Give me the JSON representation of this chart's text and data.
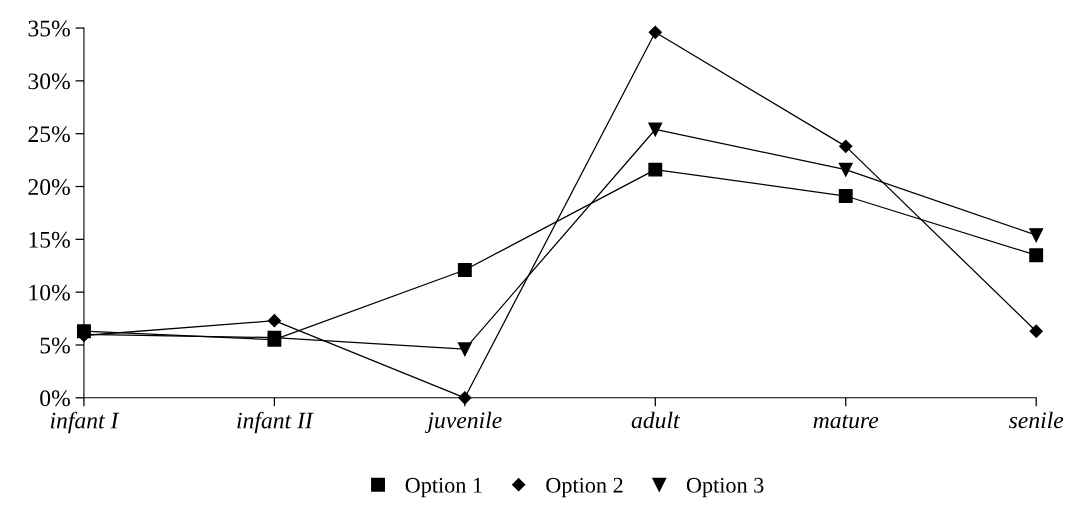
{
  "chart_data": {
    "type": "line",
    "categories": [
      "infant I",
      "infant II",
      "juvenile",
      "adult",
      "mature",
      "senile"
    ],
    "series": [
      {
        "name": "Option 1",
        "color": "#000000",
        "marker": "square",
        "values": [
          6.3,
          5.5,
          12.1,
          21.6,
          19.1,
          13.5
        ]
      },
      {
        "name": "Option 2",
        "color": "#000000",
        "marker": "diamond",
        "values": [
          5.9,
          7.3,
          0,
          34.6,
          23.8,
          6.3
        ]
      },
      {
        "name": "Option 3",
        "color": "#000000",
        "marker": "triangle",
        "values": [
          6.0,
          5.7,
          4.6,
          25.4,
          21.6,
          15.4
        ]
      }
    ],
    "ylim": [
      0,
      35
    ],
    "yticks": [
      {
        "value": 0,
        "label": "0%"
      },
      {
        "value": 5,
        "label": "5%"
      },
      {
        "value": 10,
        "label": "10%"
      },
      {
        "value": 15,
        "label": "15%"
      },
      {
        "value": 20,
        "label": "20%"
      },
      {
        "value": 25,
        "label": "25%"
      },
      {
        "value": 30,
        "label": "30%"
      },
      {
        "value": 35,
        "label": "35%"
      }
    ],
    "grid": false,
    "legend": "bottom",
    "line_style": "solid"
  }
}
